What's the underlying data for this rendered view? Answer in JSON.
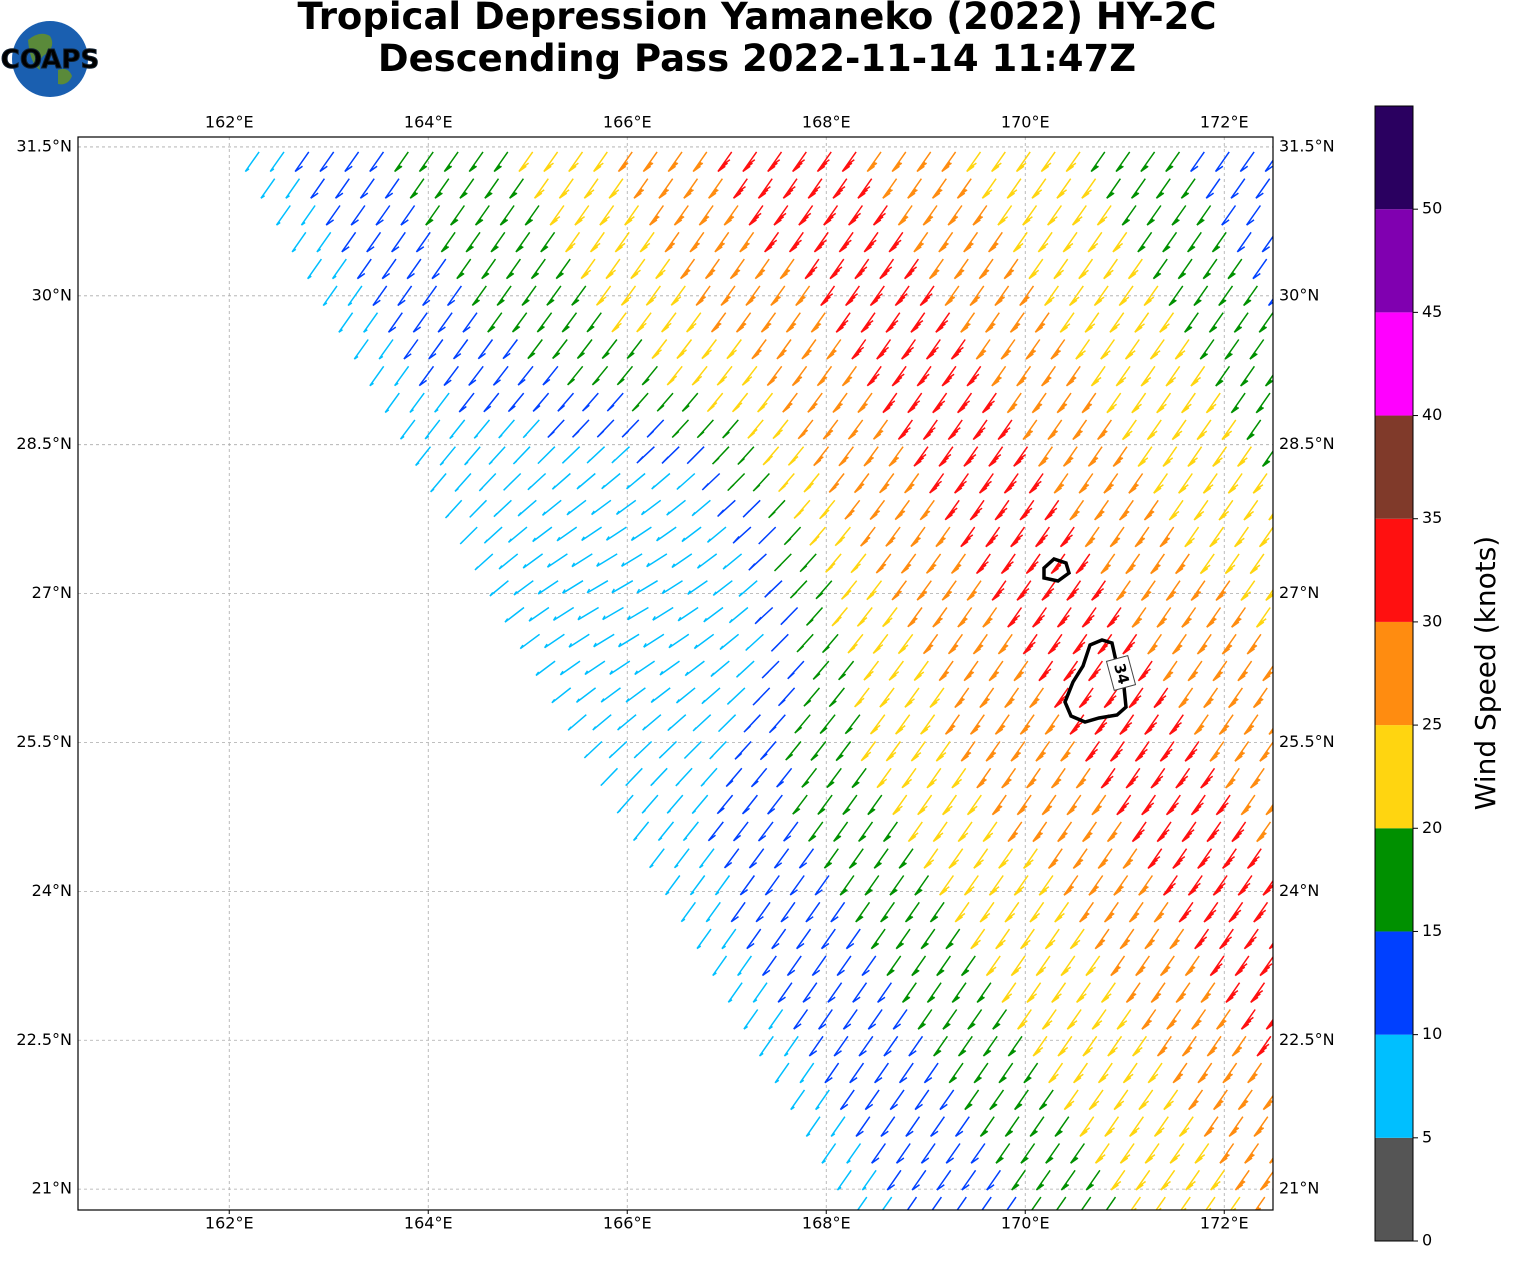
{
  "logo": "COAPS",
  "title": [
    "Tropical Depression Yamaneko (2022) HY-2C",
    "Descending Pass 2022-11-14 11:47Z"
  ],
  "map": {
    "xlim": [
      160.48,
      172.49
    ],
    "ylim": [
      20.79,
      31.6
    ],
    "xticks": [
      {
        "value": 162,
        "label": "162°E"
      },
      {
        "value": 164,
        "label": "164°E"
      },
      {
        "value": 166,
        "label": "166°E"
      },
      {
        "value": 168,
        "label": "168°E"
      },
      {
        "value": 170,
        "label": "170°E"
      },
      {
        "value": 172,
        "label": "172°E"
      }
    ],
    "yticks": [
      {
        "value": 21,
        "label": "21°N"
      },
      {
        "value": 22.5,
        "label": "22.5°N"
      },
      {
        "value": 24,
        "label": "24°N"
      },
      {
        "value": 25.5,
        "label": "25.5°N"
      },
      {
        "value": 27,
        "label": "27°N"
      },
      {
        "value": 28.5,
        "label": "28.5°N"
      },
      {
        "value": 30,
        "label": "30°N"
      },
      {
        "value": 31.5,
        "label": "31.5°N"
      }
    ],
    "contour_label": "34"
  },
  "colorbar": {
    "label": "Wind Speed (knots)",
    "lim": [
      0,
      55
    ],
    "ticks": [
      0,
      5,
      10,
      15,
      20,
      25,
      30,
      35,
      40,
      45,
      50
    ],
    "bounds": [
      0,
      5,
      10,
      15,
      20,
      25,
      30,
      35,
      40,
      45,
      50,
      55
    ],
    "colors": [
      "#555555",
      "#00bfff",
      "#0040ff",
      "#009000",
      "#ffd510",
      "#ff8c10",
      "#ff1010",
      "#803a2a",
      "#ff00ff",
      "#8000b0",
      "#2a0060"
    ]
  }
}
